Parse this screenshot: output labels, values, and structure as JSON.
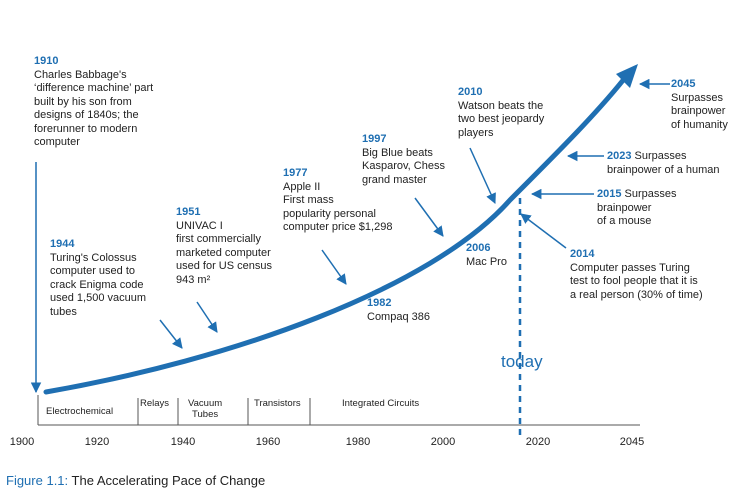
{
  "milestones": {
    "m1910": {
      "year": "1910",
      "text": "Charles Babbage's\n‘difference machine’ part\nbuilt by his son from\ndesigns of 1840s; the\nforerunner to modern\ncomputer"
    },
    "m1944": {
      "year": "1944",
      "text": "Turing's Colossus\ncomputer used to\ncrack Enigma code\nused 1,500 vacuum\ntubes"
    },
    "m1951": {
      "year": "1951",
      "text": "UNIVAC I\nfirst commercially\nmarketed computer\nused for US census\n943 m²"
    },
    "m1977": {
      "year": "1977",
      "text": "Apple II\nFirst mass\npopularity personal\ncomputer price $1,298"
    },
    "m1982": {
      "year": "1982",
      "text": "Compaq 386"
    },
    "m1997": {
      "year": "1997",
      "text": "Big Blue beats\nKasparov, Chess\ngrand master"
    },
    "m2006": {
      "year": "2006",
      "text": "Mac Pro"
    },
    "m2010": {
      "year": "2010",
      "text": "Watson beats the\ntwo best jeopardy\nplayers"
    },
    "m2014": {
      "year": "2014",
      "text": "Computer passes Turing\ntest to fool people that it is\na real person (30% of time)"
    },
    "m2015": {
      "year": "2015",
      "first": "Surpasses",
      "text": "brainpower\nof a mouse"
    },
    "m2023": {
      "year": "2023",
      "first": "Surpasses",
      "text": "brainpower of a human"
    },
    "m2045": {
      "year": "2045",
      "text": "Surpasses\nbrainpower\nof humanity"
    }
  },
  "eras": [
    "Electrochemical",
    "Relays",
    "Vacuum\nTubes",
    "Transistors",
    "Integrated Circuits"
  ],
  "axis": {
    "ticks": [
      "1900",
      "1920",
      "1940",
      "1960",
      "1980",
      "2000",
      "2020",
      "2045"
    ]
  },
  "today_label": "today",
  "caption": {
    "figure": "Figure 1.1:",
    "title": "The Accelerating Pace of Change"
  },
  "colors": {
    "accent": "#1f6fb2",
    "text": "#222222",
    "axis": "#555555"
  }
}
